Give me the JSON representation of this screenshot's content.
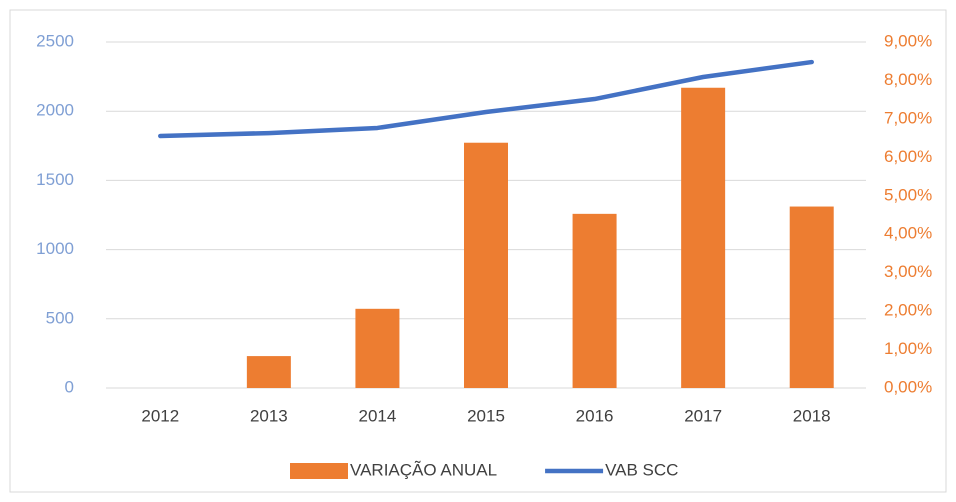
{
  "chart_data": {
    "type": "combo",
    "categories": [
      "2012",
      "2013",
      "2014",
      "2015",
      "2016",
      "2017",
      "2018"
    ],
    "series": [
      {
        "name": "VARIAÇÃO ANUAL",
        "type": "bar",
        "axis": "y2",
        "color": "#ed7d31",
        "values": [
          0,
          0.83,
          2.06,
          6.38,
          4.53,
          7.81,
          4.72
        ]
      },
      {
        "name": "VAB SCC",
        "type": "line",
        "axis": "y",
        "color": "#4472c4",
        "values": [
          1821,
          1842,
          1879,
          1994,
          2088,
          2247,
          2355
        ]
      }
    ],
    "ylim": [
      0,
      2500
    ],
    "yticks": [
      0,
      500,
      1000,
      1500,
      2000,
      2500
    ],
    "y2lim": [
      0,
      9
    ],
    "y2ticks": [
      {
        "value": 0,
        "label": "0,00%"
      },
      {
        "value": 1,
        "label": "1,00%"
      },
      {
        "value": 2,
        "label": "2,00%"
      },
      {
        "value": 3,
        "label": "3,00%"
      },
      {
        "value": 4,
        "label": "4,00%"
      },
      {
        "value": 5,
        "label": "5,00%"
      },
      {
        "value": 6,
        "label": "6,00%"
      },
      {
        "value": 7,
        "label": "7,00%"
      },
      {
        "value": 8,
        "label": "8,00%"
      },
      {
        "value": 9,
        "label": "9,00%"
      }
    ],
    "grid": true,
    "legend": "bottom",
    "ytick_color": "#7f9fd4",
    "y2tick_color": "#ed7d31"
  }
}
